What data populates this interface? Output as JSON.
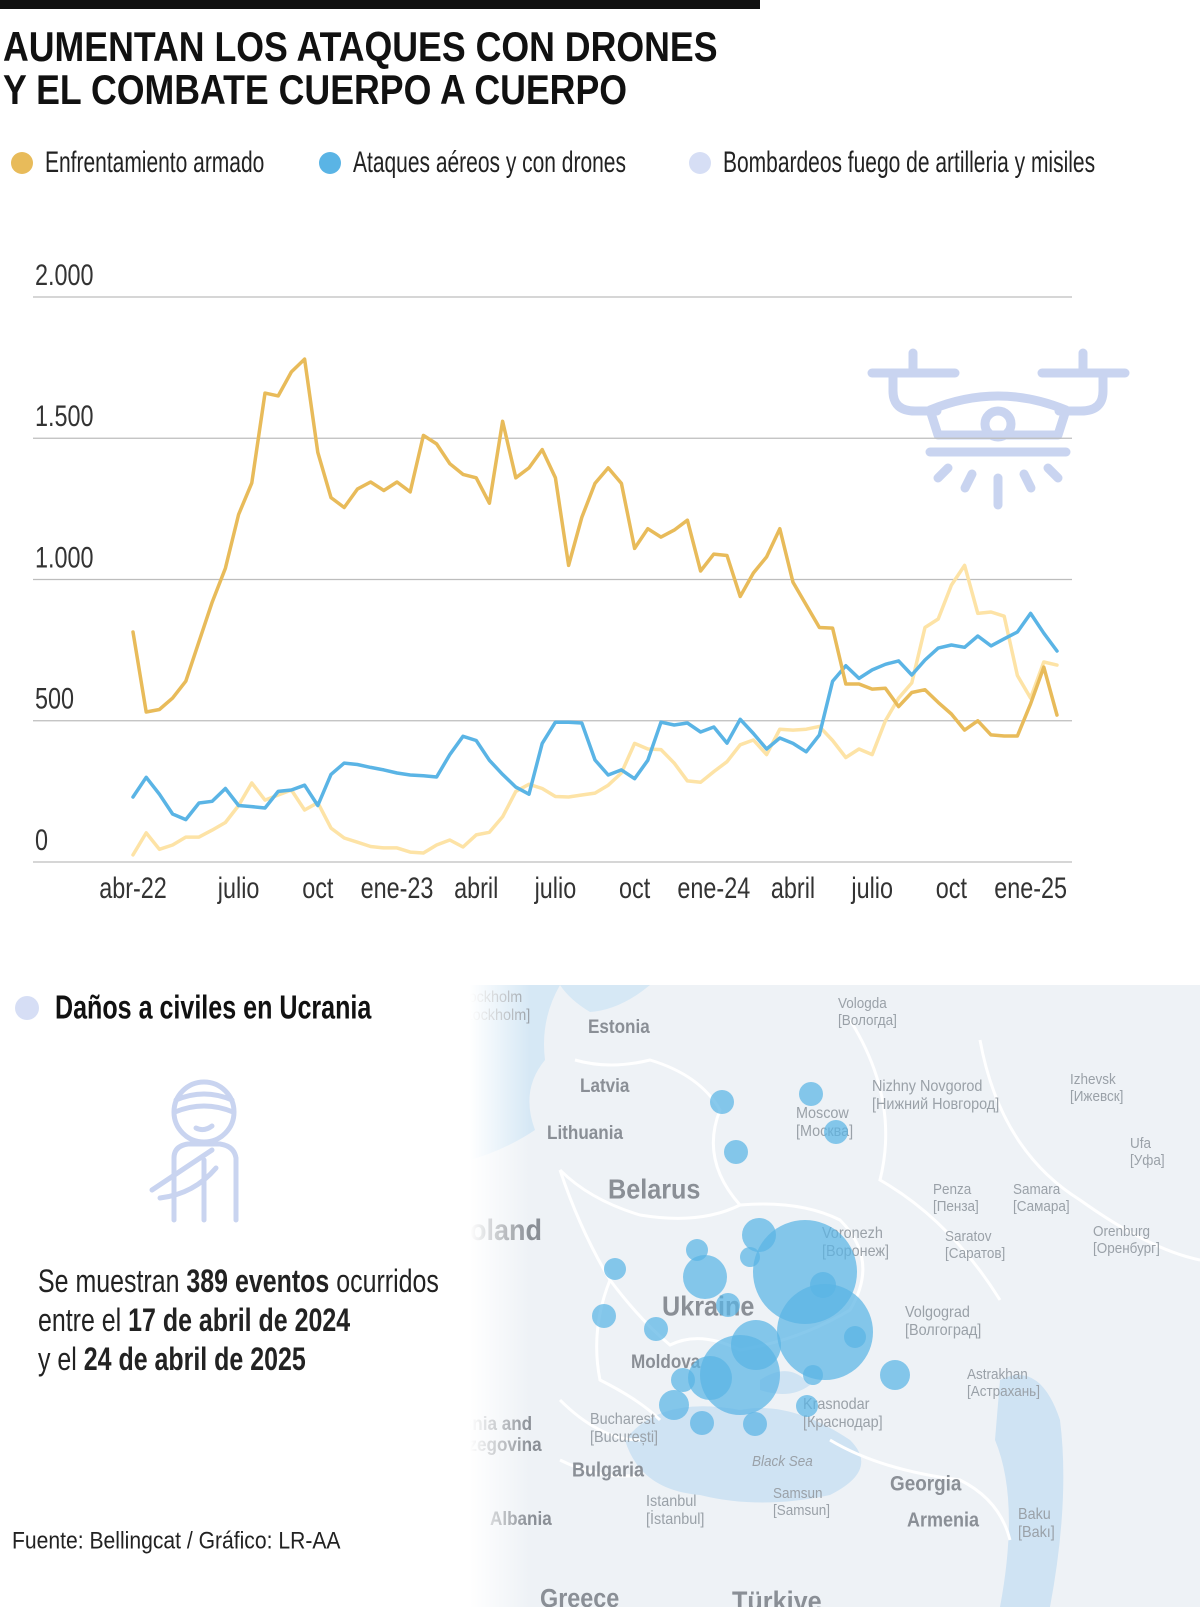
{
  "chart_data": {
    "type": "line",
    "title": [
      "AUMENTAN LOS ATAQUES CON DRONES",
      "Y EL COMBATE CUERPO A CUERPO"
    ],
    "categories": [
      "abr-22",
      null,
      null,
      null,
      null,
      null,
      null,
      null,
      "julio",
      null,
      null,
      null,
      null,
      null,
      "oct",
      null,
      null,
      null,
      null,
      null,
      "ene-23",
      null,
      null,
      null,
      null,
      null,
      "abril",
      null,
      null,
      null,
      null,
      null,
      "julio",
      null,
      null,
      null,
      null,
      null,
      "oct",
      null,
      null,
      null,
      null,
      null,
      "ene-24",
      null,
      null,
      null,
      null,
      null,
      "abril",
      null,
      null,
      null,
      null,
      null,
      "julio",
      null,
      null,
      null,
      null,
      null,
      "oct",
      null,
      null,
      null,
      null,
      null,
      "ene-25",
      null,
      null
    ],
    "series": [
      {
        "name": "Enfrentamiento armado",
        "color": "#e8bb5a",
        "values": [
          814,
          531,
          540,
          580,
          640,
          780,
          920,
          1040,
          1230,
          1342,
          1660,
          1650,
          1735,
          1780,
          1450,
          1290,
          1255,
          1320,
          1345,
          1315,
          1345,
          1310,
          1510,
          1480,
          1410,
          1372,
          1360,
          1270,
          1560,
          1360,
          1395,
          1460,
          1360,
          1050,
          1220,
          1340,
          1395,
          1340,
          1110,
          1180,
          1150,
          1175,
          1210,
          1030,
          1090,
          1085,
          940,
          1023,
          1080,
          1180,
          990,
          910,
          830,
          828,
          630,
          630,
          612,
          615,
          550,
          600,
          610,
          565,
          524,
          467,
          500,
          450,
          446,
          446,
          560,
          690,
          520
        ]
      },
      {
        "name": "Ataques aéreos y con drones",
        "color": "#5ab4e5",
        "values": [
          230,
          300,
          240,
          170,
          150,
          209,
          215,
          260,
          200,
          196,
          191,
          250,
          255,
          272,
          200,
          310,
          350,
          345,
          335,
          326,
          315,
          308,
          305,
          301,
          380,
          445,
          430,
          360,
          310,
          265,
          240,
          420,
          495,
          495,
          492,
          361,
          308,
          326,
          295,
          360,
          495,
          485,
          492,
          460,
          478,
          421,
          505,
          455,
          400,
          439,
          420,
          390,
          450,
          640,
          695,
          650,
          680,
          700,
          712,
          662,
          715,
          757,
          768,
          760,
          800,
          765,
          790,
          814,
          880,
          810,
          747
        ]
      },
      {
        "name": "Bombardeos fuego de artilleria y misiles",
        "color": "#fde3a6",
        "legend_color": "#d6def5",
        "values": [
          25,
          103,
          45,
          60,
          88,
          88,
          113,
          140,
          200,
          280,
          219,
          237,
          255,
          184,
          210,
          120,
          85,
          70,
          55,
          50,
          50,
          35,
          32,
          60,
          78,
          53,
          96,
          105,
          160,
          250,
          275,
          260,
          232,
          230,
          237,
          244,
          272,
          315,
          420,
          400,
          398,
          350,
          287,
          282,
          320,
          355,
          415,
          432,
          380,
          470,
          467,
          470,
          480,
          430,
          370,
          400,
          380,
          500,
          580,
          634,
          830,
          860,
          980,
          1050,
          880,
          885,
          870,
          660,
          580,
          708,
          697
        ]
      }
    ],
    "ylim": [
      0,
      2000
    ],
    "yticks": [
      {
        "value": 0,
        "label": "0"
      },
      {
        "value": 500,
        "label": "500"
      },
      {
        "value": 1000,
        "label": "1.000"
      },
      {
        "value": 1500,
        "label": "1.500"
      },
      {
        "value": 2000,
        "label": "2.000"
      }
    ],
    "grid": true
  },
  "section": {
    "title": "Daños a civiles en Ucrania",
    "note": [
      [
        {
          "text": "Se muestran "
        },
        {
          "text": "389 eventos",
          "bold": true
        },
        {
          "text": " ocurridos"
        }
      ],
      [
        {
          "text": "entre el "
        },
        {
          "text": "17 de abril de 2024",
          "bold": true
        }
      ],
      [
        {
          "text": "y el "
        },
        {
          "text": "24 de abril de 2025",
          "bold": true
        }
      ]
    ]
  },
  "map": {
    "labels": [
      {
        "name": "Estonia"
      },
      {
        "name": "Latvia"
      },
      {
        "name": "Lithuania"
      },
      {
        "name": "Belarus"
      },
      {
        "name": "Poland"
      },
      {
        "name": "Ukraine"
      },
      {
        "name": "Moldova"
      },
      {
        "name": "Bucharest",
        "local": "[București]"
      },
      {
        "name": "Bulgaria"
      },
      {
        "name": "Istanbul",
        "local": "[İstanbul]"
      },
      {
        "name": "Albania"
      },
      {
        "name": "Greece"
      },
      {
        "name": "Türkiye"
      },
      {
        "name": "Georgia"
      },
      {
        "name": "Armenia"
      },
      {
        "name": "Baku",
        "local": "[Bakı]"
      },
      {
        "name": "Moscow",
        "local": "[Москва]"
      },
      {
        "name": "Vologda",
        "local": "[Вологда]"
      },
      {
        "name": "Nizhny Novgorod",
        "local": "[Нижний Новгород]"
      },
      {
        "name": "Izhevsk",
        "local": "[Ижевск]"
      },
      {
        "name": "Ufa",
        "local": "[Уфа]"
      },
      {
        "name": "Penza",
        "local": "[Пенза]"
      },
      {
        "name": "Samara",
        "local": "[Самара]"
      },
      {
        "name": "Saratov",
        "local": "[Саратов]"
      },
      {
        "name": "Voronezh",
        "local": "[Воронеж]"
      },
      {
        "name": "Volgograd",
        "local": "[Волгоград]"
      },
      {
        "name": "Astrakhan",
        "local": "[Астрахань]"
      },
      {
        "name": "Orenburg",
        "local": "[Оренбург]"
      },
      {
        "name": "Krasnodar",
        "local": "[Краснодар]"
      },
      {
        "name": "Samsun",
        "local": "[Samsun]"
      },
      {
        "name": "Black Sea"
      },
      {
        "name": "Stockholm",
        "local": "[Stockholm]"
      },
      {
        "name": "Bosnia and",
        "local": "Herzegovina"
      }
    ]
  },
  "source": "Fuente: Bellingcat  / Gráfico: LR-AA"
}
